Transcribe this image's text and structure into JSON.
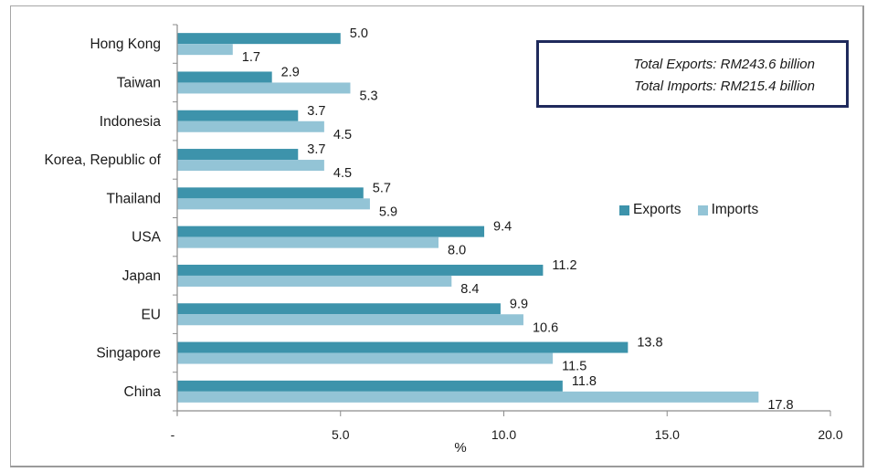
{
  "chart_data": {
    "type": "bar",
    "orientation": "horizontal",
    "title": "",
    "xlabel": "%",
    "ylabel": "",
    "xlim": [
      0,
      20
    ],
    "x_ticks": [
      {
        "value": 0,
        "label": "-"
      },
      {
        "value": 5,
        "label": "5.0"
      },
      {
        "value": 10,
        "label": "10.0"
      },
      {
        "value": 15,
        "label": "15.0"
      },
      {
        "value": 20,
        "label": "20.0"
      }
    ],
    "grid": false,
    "legend_position": "right-middle",
    "categories": [
      "Hong Kong",
      "Taiwan",
      "Indonesia",
      "Korea, Republic of",
      "Thailand",
      "USA",
      "Japan",
      "EU",
      "Singapore",
      "China"
    ],
    "series": [
      {
        "name": "Exports",
        "color": "#3d93ab",
        "values": [
          5.0,
          2.9,
          3.7,
          3.7,
          5.7,
          9.4,
          11.2,
          9.9,
          13.8,
          11.8
        ],
        "labels": [
          "5.0",
          "2.9",
          "3.7",
          "3.7",
          "5.7",
          "9.4",
          "11.2",
          "9.9",
          "13.8",
          "11.8"
        ]
      },
      {
        "name": "Imports",
        "color": "#93c4d6",
        "values": [
          1.7,
          5.3,
          4.5,
          4.5,
          5.9,
          8.0,
          8.4,
          10.6,
          11.5,
          17.8
        ],
        "labels": [
          "1.7",
          "5.3",
          "4.5",
          "4.5",
          "5.9",
          "8.0",
          "8.4",
          "10.6",
          "11.5",
          "17.8"
        ]
      }
    ],
    "annotations": [
      "Total Exports: RM243.6 billion",
      "Total Imports: RM215.4 billion"
    ]
  },
  "totals": {
    "exports": "Total Exports: RM243.6 billion",
    "imports": "Total Imports: RM215.4 billion"
  },
  "legend": [
    {
      "label": "Exports",
      "color": "#3d93ab"
    },
    {
      "label": "Imports",
      "color": "#93c4d6"
    }
  ],
  "axis_color": "#8c8c8c",
  "box_border_color": "#1f2a5c"
}
